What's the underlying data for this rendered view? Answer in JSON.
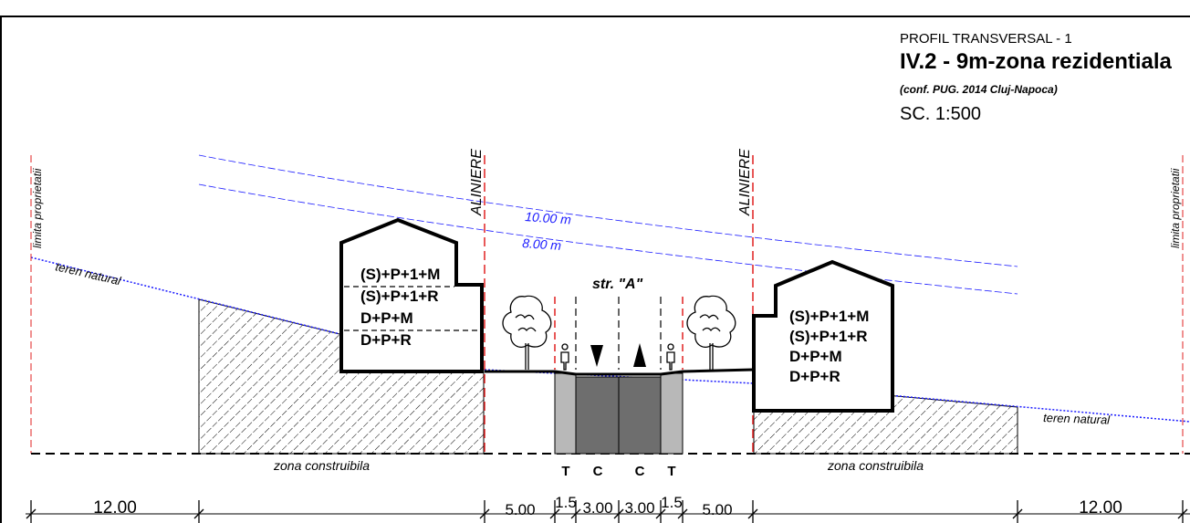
{
  "title_block": {
    "subtitle": "PROFIL TRANSVERSAL  - 1",
    "title": "IV.2 - 9m-zona rezidentiala",
    "reference": "(conf. PUG. 2014 Cluj-Napoca)",
    "scale": "SC. 1:500"
  },
  "labels": {
    "property_limit": "limita proprietatii",
    "alignment": "ALINIERE",
    "natural_terrain": "teren natural",
    "buildable_zone": "zona construibila",
    "street": "str. \"A\"",
    "height_10": "10.00 m",
    "height_8": "8.00 m"
  },
  "building_left": {
    "regimes": [
      "(S)+P+1+M",
      "(S)+P+1+R",
      "D+P+M",
      "D+P+R"
    ]
  },
  "building_right": {
    "regimes": [
      "(S)+P+1+M",
      "(S)+P+1+R",
      "D+P+M",
      "D+P+R"
    ]
  },
  "street_profile": {
    "lane_codes": [
      "T",
      "C",
      "C",
      "T"
    ]
  },
  "dimensions": {
    "left_setback": "12.00",
    "right_setback": "12.00",
    "segments": [
      "5.00",
      "1.5",
      "3.00",
      "3.00",
      "1.5",
      "5.00"
    ]
  },
  "colors": {
    "height_lines": "#1a1aff",
    "alignment_lines": "#e02020",
    "sidewalk": "#b8b8b8",
    "carriageway": "#6e6e6e"
  }
}
